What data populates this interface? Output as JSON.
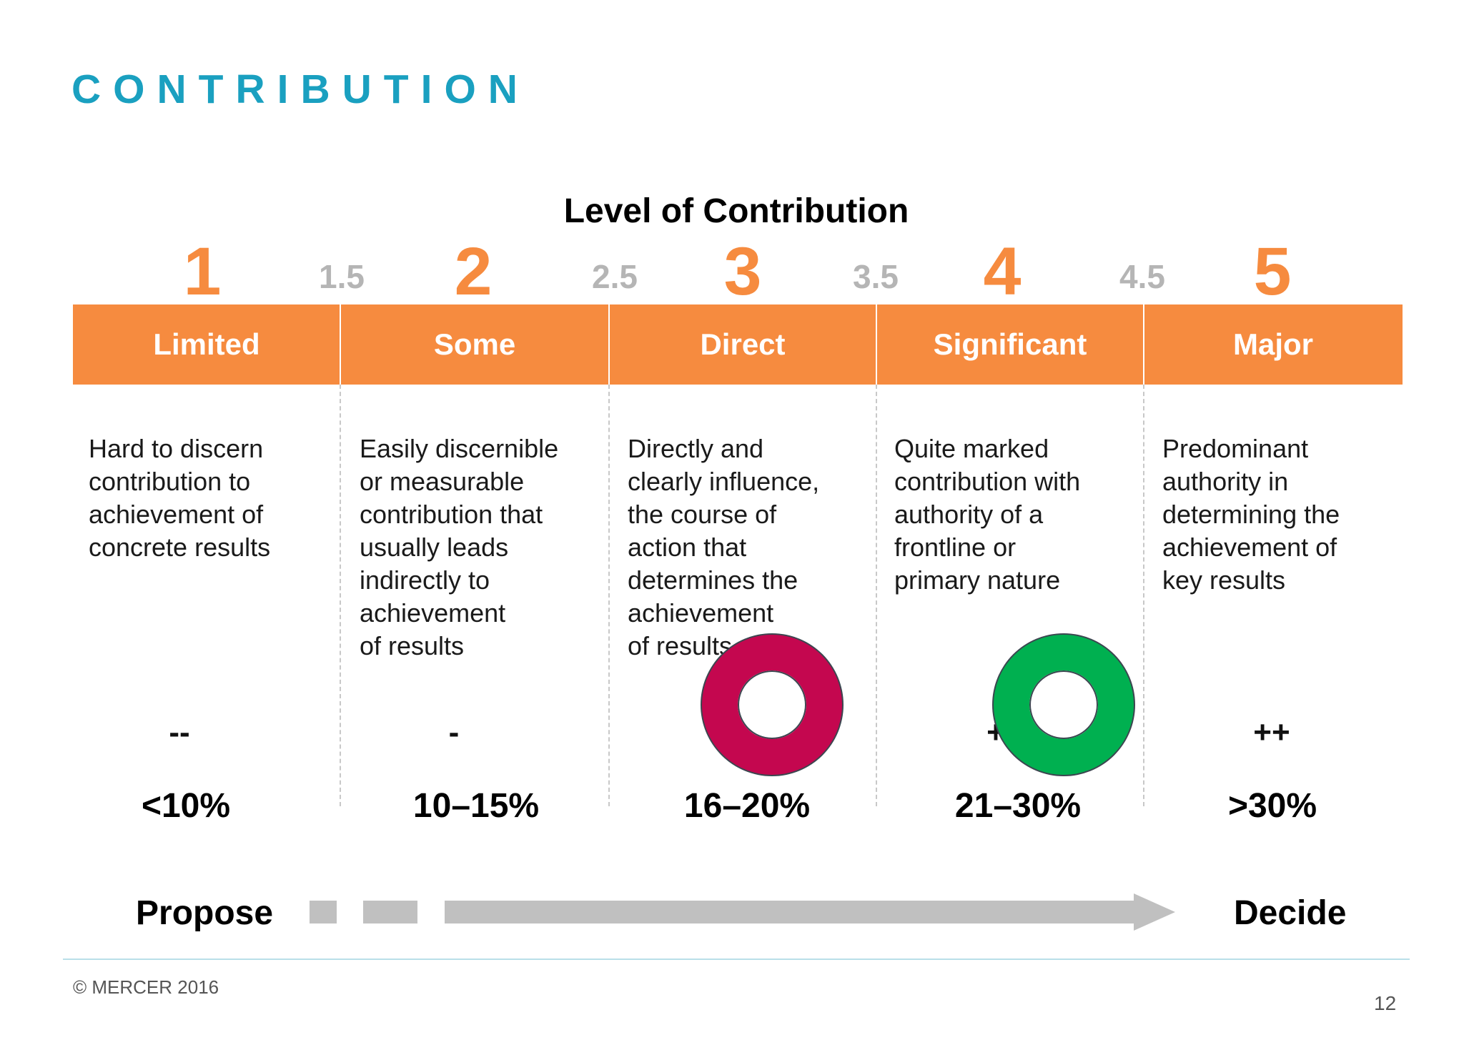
{
  "title": "CONTRIBUTION",
  "subtitle": "Level of Contribution",
  "levels": [
    "1",
    "2",
    "3",
    "4",
    "5"
  ],
  "half_levels": [
    "1.5",
    "2.5",
    "3.5",
    "4.5"
  ],
  "columns": [
    {
      "label": "Limited",
      "description": [
        "Hard to discern",
        "contribution to",
        "achievement of",
        "concrete results"
      ],
      "symbol": "--",
      "percent": "<10%"
    },
    {
      "label": "Some",
      "description": [
        "Easily discernible",
        "or measurable",
        "contribution that",
        "usually leads",
        "indirectly to",
        "achievement",
        "of results"
      ],
      "symbol": "-",
      "percent": "10–15%"
    },
    {
      "label": "Direct",
      "description": [
        "Directly and",
        "clearly influence,",
        "the course of",
        "action that",
        "determines the",
        "achievement",
        "of results"
      ],
      "symbol": "",
      "percent": "16–20%"
    },
    {
      "label": "Significant",
      "description": [
        "Quite marked",
        "contribution with",
        "authority of a",
        "frontline or",
        "primary nature"
      ],
      "symbol": "+",
      "percent": "21–30%"
    },
    {
      "label": "Major",
      "description": [
        "Predominant",
        "authority in",
        "determining the",
        "achievement of",
        "key results"
      ],
      "symbol": "++",
      "percent": ">30%"
    }
  ],
  "scale": {
    "start": "Propose",
    "end": "Decide"
  },
  "markers": [
    {
      "color": "#c4074f"
    },
    {
      "color": "#00b050"
    }
  ],
  "colors": {
    "title": "#1aa0c0",
    "band": "#f68b3f",
    "half_level": "#b5b5b5",
    "arrow": "#c0c0c0"
  },
  "footer": {
    "copyright": "© MERCER 2016",
    "page": "12"
  }
}
